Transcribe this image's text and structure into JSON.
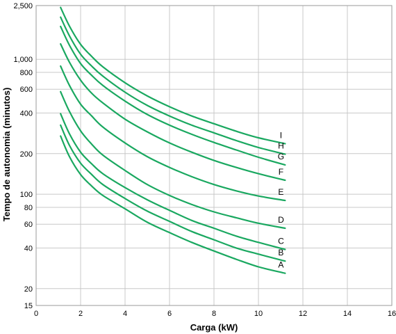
{
  "chart_data": {
    "type": "line",
    "title": "",
    "xlabel": "Carga (kW)",
    "ylabel": "Tempo de autonomia (minutos)",
    "xlim": [
      0,
      16
    ],
    "ylim": [
      15,
      2500
    ],
    "y_scale": "log",
    "grid": true,
    "line_color": "#1aa860",
    "x_ticks": [
      0,
      2,
      4,
      6,
      8,
      10,
      12,
      14,
      16
    ],
    "x_tick_labels": [
      "0",
      "2",
      "4",
      "6",
      "8",
      "10",
      "12",
      "14",
      "16"
    ],
    "y_ticks": [
      15,
      20,
      40,
      60,
      80,
      100,
      200,
      400,
      600,
      800,
      1000,
      2500
    ],
    "y_tick_labels": [
      "15",
      "20",
      "40",
      "60",
      "80",
      "100",
      "200",
      "400",
      "600",
      "800",
      "1,000",
      "2,500"
    ],
    "x": [
      1.1,
      1.5,
      2,
      2.5,
      3,
      4,
      5,
      6,
      7,
      8,
      9,
      10,
      11.2
    ],
    "series": [
      {
        "name": "A",
        "values": [
          270,
          190,
          140,
          115,
          98,
          78,
          62,
          52,
          44,
          38,
          33,
          29,
          26
        ]
      },
      {
        "name": "B",
        "values": [
          325,
          230,
          170,
          140,
          118,
          93,
          75,
          63,
          53,
          46,
          40,
          36,
          32
        ]
      },
      {
        "name": "C",
        "values": [
          395,
          280,
          205,
          168,
          142,
          112,
          91,
          76,
          64,
          56,
          49,
          44,
          39
        ]
      },
      {
        "name": "D",
        "values": [
          575,
          410,
          295,
          235,
          195,
          150,
          118,
          98,
          84,
          74,
          67,
          61,
          56
        ]
      },
      {
        "name": "E",
        "values": [
          890,
          640,
          465,
          380,
          315,
          240,
          190,
          158,
          135,
          118,
          106,
          97,
          90
        ]
      },
      {
        "name": "F",
        "values": [
          1300,
          950,
          700,
          560,
          475,
          360,
          290,
          240,
          205,
          178,
          158,
          142,
          127
        ]
      },
      {
        "name": "G",
        "values": [
          1750,
          1270,
          930,
          760,
          640,
          490,
          390,
          325,
          278,
          242,
          213,
          188,
          165
        ]
      },
      {
        "name": "H",
        "values": [
          2050,
          1490,
          1090,
          890,
          750,
          570,
          455,
          380,
          325,
          285,
          250,
          222,
          198
        ]
      },
      {
        "name": "I",
        "values": [
          2420,
          1760,
          1290,
          1050,
          880,
          670,
          535,
          445,
          380,
          333,
          293,
          262,
          237
        ]
      }
    ]
  }
}
